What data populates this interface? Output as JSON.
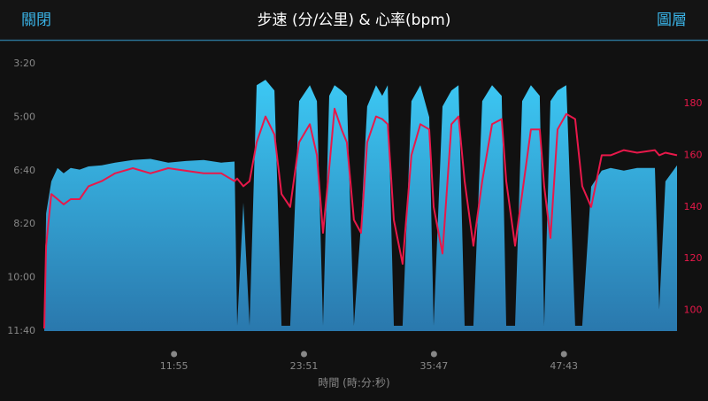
{
  "header": {
    "left": "關閉",
    "title": "步速 (分/公里) & 心率(bpm)",
    "right": "圖層"
  },
  "chart_data": {
    "type": "area-line",
    "xlabel": "時間 (時:分:秒)",
    "x": [
      0,
      10,
      39,
      73,
      107,
      146,
      195,
      244,
      317,
      390,
      488,
      585,
      683,
      780,
      878,
      975,
      1048,
      1063,
      1097,
      1131,
      1170,
      1219,
      1268,
      1307,
      1355,
      1404,
      1463,
      1502,
      1536,
      1570,
      1599,
      1638,
      1667,
      1706,
      1745,
      1779,
      1828,
      1862,
      1892,
      1926,
      1974,
      2023,
      2072,
      2121,
      2145,
      2194,
      2243,
      2282,
      2316,
      2364,
      2413,
      2467,
      2520,
      2545,
      2594,
      2633,
      2681,
      2730,
      2754,
      2789,
      2828,
      2876,
      2925,
      2964,
      3013,
      3071,
      3120,
      3193,
      3266,
      3364,
      3388,
      3422,
      3486
    ],
    "xlim": [
      0,
      3486
    ],
    "xticks": [
      {
        "value": 715,
        "label": "11:55"
      },
      {
        "value": 1431,
        "label": "23:51"
      },
      {
        "value": 2147,
        "label": "35:47"
      },
      {
        "value": 2863,
        "label": "47:43"
      }
    ],
    "ylim": [
      700,
      200
    ],
    "yticks": [
      {
        "value": 200,
        "label": "3:20"
      },
      {
        "value": 300,
        "label": "5:00"
      },
      {
        "value": 400,
        "label": "6:40"
      },
      {
        "value": 500,
        "label": "8:20"
      },
      {
        "value": 600,
        "label": "10:00"
      },
      {
        "value": 700,
        "label": "11:40"
      }
    ],
    "y2lim": [
      92,
      195.4
    ],
    "y2ticks": [
      100,
      120,
      140,
      160,
      180
    ],
    "grid": false,
    "series": [
      {
        "name": "步速",
        "kind": "area",
        "color": "#35b6e8",
        "values": [
          700,
          480,
          420,
          395,
          405,
          395,
          398,
          392,
          390,
          385,
          380,
          378,
          385,
          382,
          380,
          385,
          383,
          690,
          460,
          690,
          240,
          230,
          250,
          690,
          690,
          270,
          240,
          270,
          690,
          260,
          240,
          250,
          260,
          690,
          500,
          280,
          240,
          260,
          240,
          690,
          690,
          270,
          240,
          300,
          690,
          280,
          250,
          240,
          690,
          690,
          270,
          240,
          260,
          690,
          690,
          270,
          240,
          260,
          690,
          270,
          250,
          240,
          690,
          690,
          430,
          400,
          395,
          400,
          395,
          395,
          660,
          420,
          390
        ]
      },
      {
        "name": "心率",
        "kind": "line",
        "axis": "y2",
        "color": "#e8184a",
        "values": [
          93,
          125,
          145,
          143,
          141,
          143,
          143,
          148,
          150,
          153,
          155,
          153,
          155,
          154,
          153,
          153,
          150,
          151,
          148,
          150,
          165,
          175,
          168,
          145,
          140,
          165,
          172,
          160,
          130,
          155,
          178,
          170,
          165,
          135,
          130,
          165,
          175,
          174,
          172,
          135,
          118,
          160,
          172,
          170,
          140,
          122,
          172,
          175,
          150,
          125,
          150,
          172,
          174,
          150,
          125,
          145,
          170,
          170,
          148,
          128,
          170,
          176,
          174,
          148,
          140,
          160,
          160,
          162,
          161,
          162,
          160,
          161,
          160
        ]
      }
    ]
  }
}
